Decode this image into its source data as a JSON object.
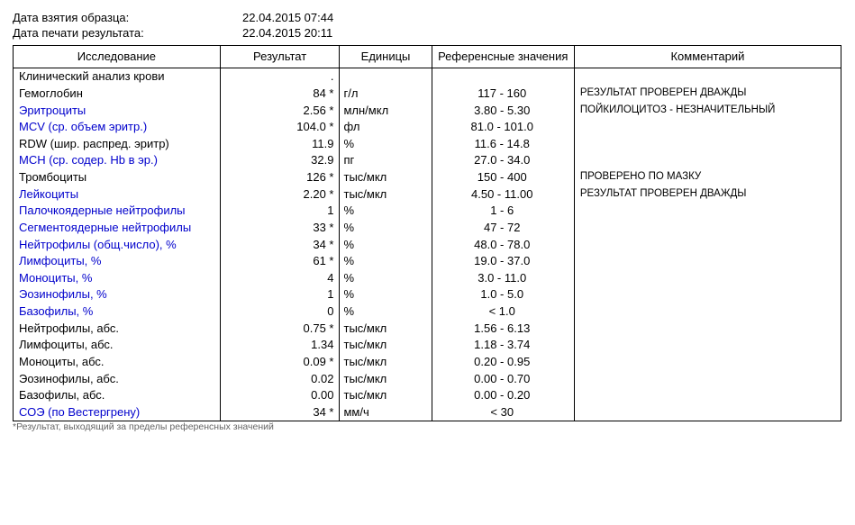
{
  "meta": {
    "sample_date_label": "Дата взятия образца:",
    "sample_date_value": "22.04.2015 07:44",
    "print_date_label": "Дата печати результата:",
    "print_date_value": "22.04.2015 20:11"
  },
  "columns": {
    "name": "Исследование",
    "result": "Результат",
    "units": "Единицы",
    "ref": "Референсные значения",
    "comment": "Комментарий"
  },
  "rows": [
    {
      "name": "Клинический анализ крови",
      "link": false,
      "result": ".",
      "units": "",
      "ref": "",
      "comment": ""
    },
    {
      "name": "Гемоглобин",
      "link": false,
      "result": "84 *",
      "units": "г/л",
      "ref": "117 - 160",
      "comment": "РЕЗУЛЬТАТ ПРОВЕРЕН ДВАЖДЫ"
    },
    {
      "name": "Эритроциты",
      "link": true,
      "result": "2.56 *",
      "units": "млн/мкл",
      "ref": "3.80 - 5.30",
      "comment": "ПОЙКИЛОЦИТОЗ - НЕЗНАЧИТЕЛЬНЫЙ"
    },
    {
      "name": "MCV (ср. объем эритр.)",
      "link": true,
      "result": "104.0 *",
      "units": "фл",
      "ref": "81.0 - 101.0",
      "comment": ""
    },
    {
      "name": "RDW (шир. распред. эритр)",
      "link": false,
      "result": "11.9",
      "units": "%",
      "ref": "11.6 - 14.8",
      "comment": ""
    },
    {
      "name": "MCH (ср. содер. Hb в эр.)",
      "link": true,
      "result": "32.9",
      "units": "пг",
      "ref": "27.0 - 34.0",
      "comment": ""
    },
    {
      "name": "Тромбоциты",
      "link": false,
      "result": "126 *",
      "units": "тыс/мкл",
      "ref": "150 - 400",
      "comment": "ПРОВЕРЕНО ПО МАЗКУ"
    },
    {
      "name": "Лейкоциты",
      "link": true,
      "result": "2.20 *",
      "units": "тыс/мкл",
      "ref": "4.50 - 11.00",
      "comment": "РЕЗУЛЬТАТ ПРОВЕРЕН ДВАЖДЫ"
    },
    {
      "name": "Палочкоядерные нейтрофилы",
      "link": true,
      "result": "1",
      "units": "%",
      "ref": "1 - 6",
      "comment": ""
    },
    {
      "name": "Сегментоядерные нейтрофилы",
      "link": true,
      "result": "33 *",
      "units": "%",
      "ref": "47 - 72",
      "comment": ""
    },
    {
      "name": "Нейтрофилы (общ.число), %",
      "link": true,
      "result": "34 *",
      "units": "%",
      "ref": "48.0 - 78.0",
      "comment": ""
    },
    {
      "name": "Лимфоциты, %",
      "link": true,
      "result": "61 *",
      "units": "%",
      "ref": "19.0 - 37.0",
      "comment": ""
    },
    {
      "name": "Моноциты, %",
      "link": true,
      "result": "4",
      "units": "%",
      "ref": "3.0 - 11.0",
      "comment": ""
    },
    {
      "name": "Эозинофилы, %",
      "link": true,
      "result": "1",
      "units": "%",
      "ref": "1.0 - 5.0",
      "comment": ""
    },
    {
      "name": "Базофилы, %",
      "link": true,
      "result": "0",
      "units": "%",
      "ref": "< 1.0",
      "comment": ""
    },
    {
      "name": "Нейтрофилы, абс.",
      "link": false,
      "result": "0.75 *",
      "units": "тыс/мкл",
      "ref": "1.56 - 6.13",
      "comment": ""
    },
    {
      "name": "Лимфоциты, абс.",
      "link": false,
      "result": "1.34",
      "units": "тыс/мкл",
      "ref": "1.18 - 3.74",
      "comment": ""
    },
    {
      "name": "Моноциты, абс.",
      "link": false,
      "result": "0.09 *",
      "units": "тыс/мкл",
      "ref": "0.20 - 0.95",
      "comment": ""
    },
    {
      "name": "Эозинофилы, абс.",
      "link": false,
      "result": "0.02",
      "units": "тыс/мкл",
      "ref": "0.00 - 0.70",
      "comment": ""
    },
    {
      "name": "Базофилы, абс.",
      "link": false,
      "result": "0.00",
      "units": "тыс/мкл",
      "ref": "0.00 - 0.20",
      "comment": ""
    },
    {
      "name": "СОЭ (по Вестергрену)",
      "link": true,
      "result": "34 *",
      "units": "мм/ч",
      "ref": "< 30",
      "comment": ""
    }
  ],
  "footnote": "*Результат, выходящий за пределы референсных значений"
}
